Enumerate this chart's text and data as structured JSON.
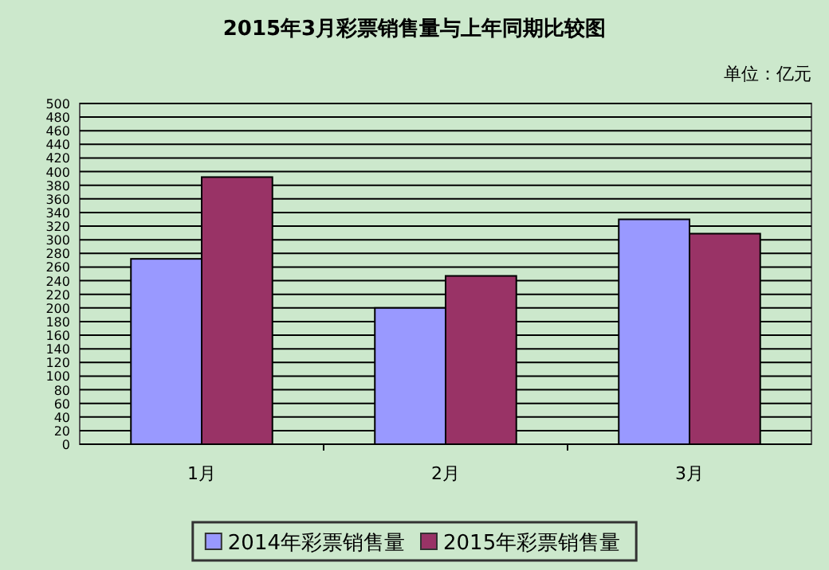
{
  "chart_data": {
    "type": "bar",
    "title": "2015年3月彩票销售量与上年同期比较图",
    "annotations": [
      "单位：亿元"
    ],
    "categories": [
      "1月",
      "2月",
      "3月"
    ],
    "series": [
      {
        "name": "2014年彩票销售量",
        "color": "#9999ff",
        "values": [
          272,
          200,
          330
        ]
      },
      {
        "name": "2015年彩票销售量",
        "color": "#993366",
        "values": [
          392,
          247,
          309
        ]
      }
    ],
    "ylim": [
      0,
      500
    ],
    "yticks": [
      0,
      20,
      40,
      60,
      80,
      100,
      120,
      140,
      160,
      180,
      200,
      220,
      240,
      260,
      280,
      300,
      320,
      340,
      360,
      380,
      400,
      420,
      440,
      460,
      480,
      500
    ],
    "grid": "y",
    "legend": "bottom"
  }
}
